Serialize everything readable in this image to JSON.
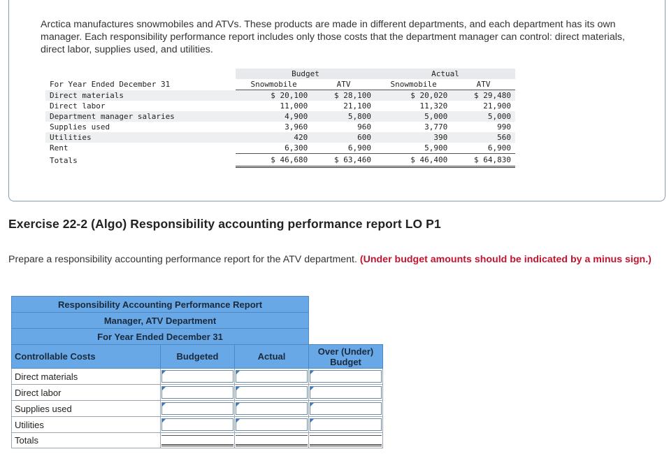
{
  "intro": "Arctica manufactures snowmobiles and ATVs. These products are made in different departments, and each department has its own manager. Each responsibility performance report includes only those costs that the department manager can control: direct materials, direct labor, supplies used, and utilities.",
  "budget_table": {
    "group_budget": "Budget",
    "group_actual": "Actual",
    "period_label": "For Year Ended December 31",
    "col_snow": "Snowmobile",
    "col_atv": "ATV",
    "rows": [
      {
        "label": "Direct materials",
        "bs": "$ 20,100",
        "ba": "$ 28,100",
        "as": "$ 20,020",
        "aa": "$ 29,480"
      },
      {
        "label": "Direct labor",
        "bs": "11,000",
        "ba": "21,100",
        "as": "11,320",
        "aa": "21,900"
      },
      {
        "label": "Department manager salaries",
        "bs": "4,900",
        "ba": "5,800",
        "as": "5,000",
        "aa": "5,000"
      },
      {
        "label": "Supplies used",
        "bs": "3,960",
        "ba": "960",
        "as": "3,770",
        "aa": "990"
      },
      {
        "label": "Utilities",
        "bs": "420",
        "ba": "600",
        "as": "390",
        "aa": "560"
      },
      {
        "label": "Rent",
        "bs": "6,300",
        "ba": "6,900",
        "as": "5,900",
        "aa": "6,900"
      }
    ],
    "totals": {
      "label": "Totals",
      "bs": "$ 46,680",
      "ba": "$ 63,460",
      "as": "$ 46,400",
      "aa": "$ 64,830"
    }
  },
  "exercise_title": "Exercise 22-2 (Algo) Responsibility accounting performance report LO P1",
  "instructions": {
    "text": "Prepare a responsibility accounting performance report for the ATV department. ",
    "emphasis": "(Under budget amounts should be indicated by a minus sign.)"
  },
  "report": {
    "title1": "Responsibility Accounting Performance Report",
    "title2": "Manager, ATV Department",
    "title3": "For Year Ended December 31",
    "col_costs": "Controllable Costs",
    "col_budgeted": "Budgeted",
    "col_actual": "Actual",
    "col_over": "Over (Under)\nBudget",
    "rows": [
      "Direct materials",
      "Direct labor",
      "Supplies used",
      "Utilities"
    ],
    "totals_label": "Totals"
  }
}
